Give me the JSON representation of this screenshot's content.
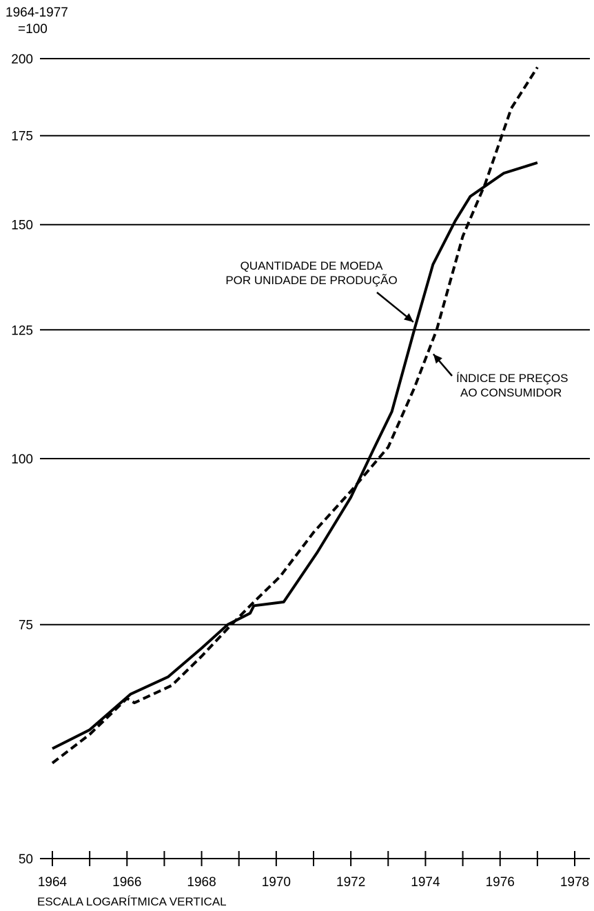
{
  "chart_data": {
    "type": "line",
    "title": "",
    "ylabel_line1": "1964-1977",
    "ylabel_line2": "=100",
    "xlabel": "",
    "scale_note": "ESCALA LOGARÍTMICA VERTICAL",
    "y_scale": "log",
    "ylim": [
      50,
      200
    ],
    "xlim": [
      1964,
      1978
    ],
    "y_ticks": [
      50,
      75,
      100,
      125,
      150,
      175,
      200
    ],
    "y_gridlines": [
      75,
      100,
      125,
      150,
      175,
      200
    ],
    "x_ticks": [
      1964,
      1965,
      1966,
      1967,
      1968,
      1969,
      1970,
      1971,
      1972,
      1973,
      1974,
      1975,
      1976,
      1977,
      1978
    ],
    "x_tick_labels": [
      "1964",
      "1966",
      "1968",
      "1970",
      "1972",
      "1974",
      "1976",
      "1978"
    ],
    "grid": true,
    "legend": "none",
    "series": [
      {
        "name": "QUANTIDADE DE MOEDA POR UNIDADE DE PRODUÇÃO",
        "style": "solid",
        "x": [
          1964.0,
          1965.0,
          1966.1,
          1967.1,
          1968.0,
          1968.7,
          1969.3,
          1969.4,
          1970.2,
          1971.1,
          1972.0,
          1972.6,
          1973.1,
          1973.7,
          1974.2,
          1974.8,
          1975.2,
          1976.1,
          1977.0
        ],
        "y": [
          60.5,
          62.5,
          66.5,
          68.5,
          72.0,
          75.0,
          76.5,
          77.5,
          78.0,
          85.0,
          93.5,
          101.5,
          108.5,
          125.0,
          140.0,
          151.0,
          157.5,
          164.0,
          167.0
        ]
      },
      {
        "name": "ÍNDICE DE PREÇOS AO CONSUMIDOR",
        "style": "dashed",
        "x": [
          1964.0,
          1965.0,
          1966.0,
          1966.2,
          1967.2,
          1968.0,
          1968.8,
          1969.4,
          1970.1,
          1971.0,
          1972.0,
          1973.0,
          1973.7,
          1974.3,
          1975.0,
          1975.6,
          1976.3,
          1977.0
        ],
        "y": [
          59.0,
          62.0,
          66.0,
          65.5,
          67.5,
          71.0,
          75.0,
          78.0,
          81.5,
          88.0,
          94.5,
          102.0,
          113.0,
          125.0,
          147.0,
          161.0,
          183.5,
          197.0
        ]
      }
    ],
    "annotations": [
      {
        "lines": [
          "QUANTIDADE DE MOEDA",
          "POR UNIDADE DE PRODUÇÃO"
        ],
        "target_x": 1973.75,
        "target_y": 125.5
      },
      {
        "lines": [
          "ÍNDICE DE PREÇOS",
          "AO CONSUMIDOR"
        ],
        "target_x": 1974.1,
        "target_y": 119.0
      }
    ]
  }
}
